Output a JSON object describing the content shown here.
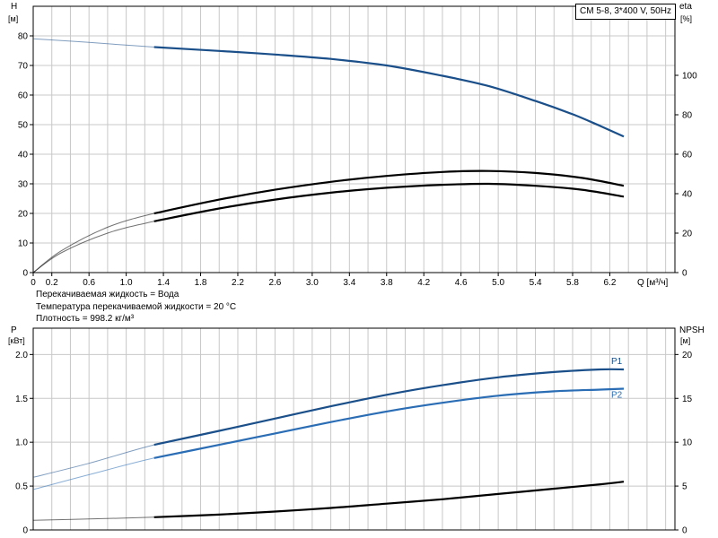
{
  "model_label": "CM 5-8, 3*400 V, 50Hz",
  "fluid_info": {
    "line1": "Перекачиваемая жидкость = Вода",
    "line2": "Температура перекачиваемой жидкости = 20 °C",
    "line3": "Плотность = 998.2 кг/м³"
  },
  "colors": {
    "blue": "#1a4f8a",
    "light_blue": "#2a6db5",
    "black": "#000000",
    "grid": "#c8c8c8"
  },
  "chart_data": [
    {
      "type": "line",
      "name": "head-efficiency",
      "x_axis": {
        "label": "Q [м³/ч]",
        "range": [
          0,
          6.9
        ],
        "ticks": [
          "0",
          "0.2",
          "0.6",
          "1.0",
          "1.4",
          "1.8",
          "2.2",
          "2.6",
          "3.0",
          "3.4",
          "3.8",
          "4.2",
          "4.6",
          "5.0",
          "5.4",
          "5.8",
          "6.2"
        ],
        "tick_values": [
          0,
          0.2,
          0.6,
          1.0,
          1.4,
          1.8,
          2.2,
          2.6,
          3.0,
          3.4,
          3.8,
          4.2,
          4.6,
          5.0,
          5.4,
          5.8,
          6.2
        ],
        "grid_step": 0.2
      },
      "y_axis_left": {
        "label_top": "H",
        "label_unit": "[м]",
        "range": [
          0,
          90
        ],
        "ticks": [
          "0",
          "10",
          "20",
          "30",
          "40",
          "50",
          "60",
          "70",
          "80"
        ],
        "tick_values": [
          0,
          10,
          20,
          30,
          40,
          50,
          60,
          70,
          80
        ]
      },
      "y_axis_right": {
        "label_top": "eta",
        "label_unit": "[%]",
        "range": [
          0,
          135
        ],
        "ticks": [
          "0",
          "20",
          "40",
          "60",
          "80",
          "100"
        ],
        "tick_values": [
          0,
          20,
          40,
          60,
          80,
          100
        ]
      },
      "grid": true,
      "series": [
        {
          "axis": "left",
          "color": "blue",
          "x": [
            0,
            0.6,
            1.3,
            2.0,
            2.6,
            3.2,
            3.8,
            4.4,
            4.9,
            5.4,
            5.8,
            6.1,
            6.35
          ],
          "y": [
            79,
            77.8,
            76.2,
            74.9,
            73.7,
            72.2,
            70,
            66.5,
            63,
            58,
            53.5,
            49.5,
            46
          ],
          "operating_from": 1.3
        },
        {
          "axis": "right",
          "color": "black",
          "x": [
            0,
            0.3,
            0.8,
            1.3,
            2.0,
            2.6,
            3.2,
            3.8,
            4.4,
            4.9,
            5.4,
            5.9,
            6.35
          ],
          "y": [
            0,
            11,
            23,
            30,
            37,
            42,
            46,
            49,
            51,
            51.5,
            50.5,
            48,
            44
          ],
          "operating_from": 1.3
        },
        {
          "axis": "right",
          "color": "black",
          "x": [
            0,
            0.3,
            0.8,
            1.3,
            2.0,
            2.6,
            3.2,
            3.8,
            4.4,
            4.9,
            5.4,
            5.9,
            6.35
          ],
          "y": [
            0,
            10,
            20,
            26,
            32.5,
            37,
            40.5,
            43,
            44.5,
            45,
            44,
            42,
            38.5
          ],
          "operating_from": 1.3
        }
      ]
    },
    {
      "type": "line",
      "name": "power-npsh",
      "x_axis": {
        "range": [
          0,
          6.9
        ],
        "grid_step": 0.2
      },
      "y_axis_left": {
        "label_top": "P",
        "label_unit": "[кВт]",
        "range": [
          0,
          2.3
        ],
        "ticks": [
          "0",
          "0.5",
          "1.0",
          "1.5",
          "2.0"
        ],
        "tick_values": [
          0,
          0.5,
          1.0,
          1.5,
          2.0
        ]
      },
      "y_axis_right": {
        "label_top": "NPSH",
        "label_unit": "[м]",
        "range": [
          0,
          23
        ],
        "ticks": [
          "0",
          "5",
          "10",
          "15",
          "20"
        ],
        "tick_values": [
          0,
          5,
          10,
          15,
          20
        ]
      },
      "grid": true,
      "series": [
        {
          "name": "P1",
          "axis": "left",
          "color": "blue",
          "x": [
            0,
            0.6,
            1.3,
            2.0,
            2.6,
            3.2,
            3.8,
            4.4,
            5.0,
            5.6,
            6.1,
            6.35
          ],
          "y": [
            0.6,
            0.76,
            0.97,
            1.13,
            1.27,
            1.41,
            1.54,
            1.65,
            1.74,
            1.8,
            1.83,
            1.83
          ],
          "operating_from": 1.3
        },
        {
          "name": "P2",
          "axis": "left",
          "color": "light_blue",
          "x": [
            0,
            0.6,
            1.3,
            2.0,
            2.6,
            3.2,
            3.8,
            4.4,
            5.0,
            5.6,
            6.1,
            6.35
          ],
          "y": [
            0.46,
            0.63,
            0.82,
            0.97,
            1.1,
            1.23,
            1.35,
            1.45,
            1.53,
            1.58,
            1.6,
            1.61
          ],
          "operating_from": 1.3
        },
        {
          "axis": "right",
          "color": "black",
          "x": [
            0,
            0.6,
            1.3,
            2.0,
            2.6,
            3.2,
            3.8,
            4.4,
            5.0,
            5.6,
            6.1,
            6.35
          ],
          "y": [
            1.1,
            1.25,
            1.45,
            1.75,
            2.1,
            2.5,
            3.0,
            3.5,
            4.1,
            4.7,
            5.2,
            5.5
          ],
          "operating_from": 1.3
        }
      ]
    }
  ]
}
